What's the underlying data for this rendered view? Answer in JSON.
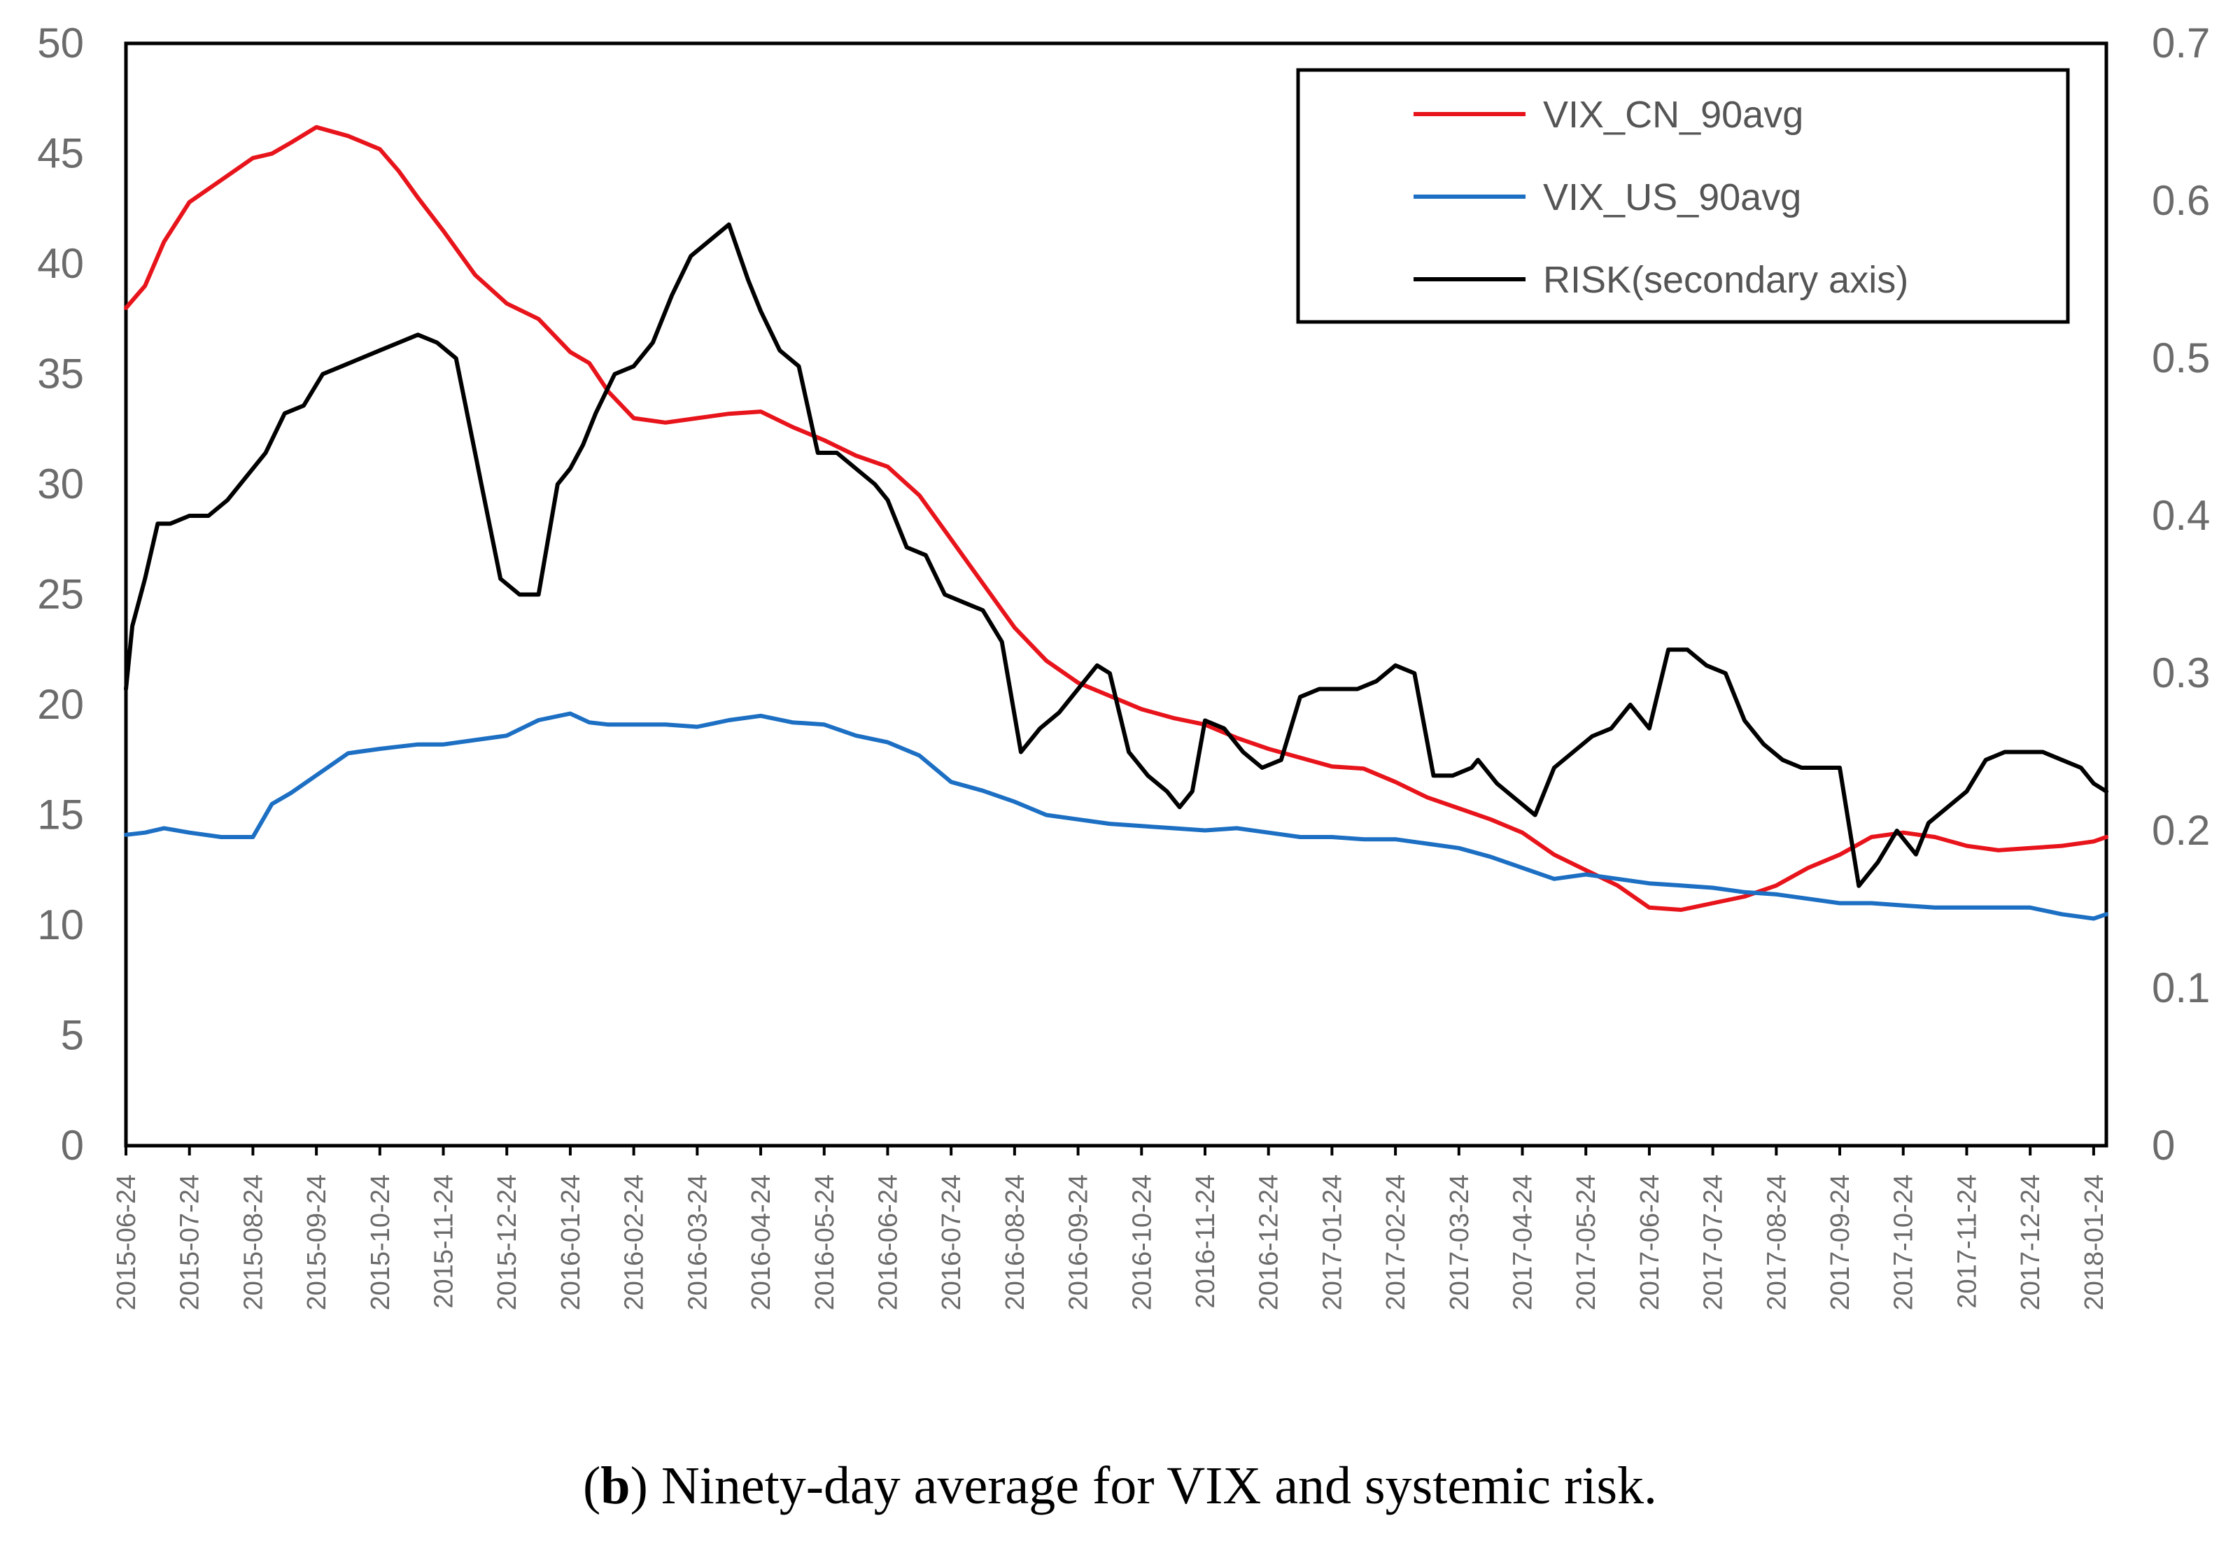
{
  "caption": {
    "open": "(",
    "letter": "b",
    "text": ") Ninety-day average for VIX and systemic risk."
  },
  "chart_data": {
    "type": "line",
    "x_tick_labels": [
      "2015-06-24",
      "2015-07-24",
      "2015-08-24",
      "2015-09-24",
      "2015-10-24",
      "2015-11-24",
      "2015-12-24",
      "2016-01-24",
      "2016-02-24",
      "2016-03-24",
      "2016-04-24",
      "2016-05-24",
      "2016-06-24",
      "2016-07-24",
      "2016-08-24",
      "2016-09-24",
      "2016-10-24",
      "2016-11-24",
      "2016-12-24",
      "2017-01-24",
      "2017-02-24",
      "2017-03-24",
      "2017-04-24",
      "2017-05-24",
      "2017-06-24",
      "2017-07-24",
      "2017-08-24",
      "2017-09-24",
      "2017-10-24",
      "2017-11-24",
      "2017-12-24",
      "2018-01-24"
    ],
    "y_left": {
      "min": 0,
      "max": 50,
      "ticks": [
        "0",
        "5",
        "10",
        "15",
        "20",
        "25",
        "30",
        "35",
        "40",
        "45",
        "50"
      ]
    },
    "y_right": {
      "min": 0,
      "max": 0.7,
      "ticks": [
        "0",
        "0.1",
        "0.2",
        "0.3",
        "0.4",
        "0.5",
        "0.6",
        "0.7"
      ]
    },
    "x_range_months": [
      0,
      31.2
    ],
    "series": [
      {
        "name": "VIX_CN_90avg",
        "axis": "left",
        "color": "#e8141b",
        "x": [
          0,
          0.3,
          0.6,
          1,
          1.5,
          2,
          2.3,
          2.6,
          3,
          3.5,
          4,
          4.3,
          4.6,
          5,
          5.5,
          6,
          6.5,
          7,
          7.3,
          7.6,
          8,
          8.5,
          9,
          9.5,
          10,
          10.5,
          11,
          11.5,
          12,
          12.5,
          13,
          13.5,
          14,
          14.5,
          15,
          15.5,
          16,
          16.5,
          17,
          17.5,
          18,
          18.5,
          19,
          19.5,
          20,
          20.5,
          21,
          21.5,
          22,
          22.5,
          23,
          23.5,
          24,
          24.5,
          25,
          25.5,
          26,
          26.5,
          27,
          27.5,
          28,
          28.5,
          29,
          29.5,
          30,
          30.5,
          31,
          31.2
        ],
        "y": [
          38,
          39,
          41,
          42.8,
          43.8,
          44.8,
          45,
          45.5,
          46.2,
          45.8,
          45.2,
          44.2,
          43,
          41.5,
          39.5,
          38.2,
          37.5,
          36,
          35.5,
          34.2,
          33,
          32.8,
          33,
          33.2,
          33.3,
          32.6,
          32,
          31.3,
          30.8,
          29.5,
          27.5,
          25.5,
          23.5,
          22,
          21,
          20.4,
          19.8,
          19.4,
          19.1,
          18.5,
          18,
          17.6,
          17.2,
          17.1,
          16.5,
          15.8,
          15.3,
          14.8,
          14.2,
          13.2,
          12.5,
          11.8,
          10.8,
          10.7,
          11,
          11.3,
          11.8,
          12.6,
          13.2,
          14,
          14.2,
          14,
          13.6,
          13.4,
          13.5,
          13.6,
          13.8,
          14
        ]
      },
      {
        "name": "VIX_US_90avg",
        "axis": "left",
        "color": "#1c6fc3",
        "x": [
          0,
          0.3,
          0.6,
          1,
          1.5,
          2,
          2.3,
          2.6,
          3,
          3.5,
          4,
          4.3,
          4.6,
          5,
          5.5,
          6,
          6.5,
          7,
          7.3,
          7.6,
          8,
          8.5,
          9,
          9.5,
          10,
          10.5,
          11,
          11.5,
          12,
          12.5,
          13,
          13.5,
          14,
          14.5,
          15,
          15.5,
          16,
          16.5,
          17,
          17.5,
          18,
          18.5,
          19,
          19.5,
          20,
          20.5,
          21,
          21.5,
          22,
          22.5,
          23,
          23.5,
          24,
          24.5,
          25,
          25.5,
          26,
          26.5,
          27,
          27.5,
          28,
          28.5,
          29,
          29.5,
          30,
          30.5,
          31,
          31.2
        ],
        "y": [
          14.1,
          14.2,
          14.4,
          14.2,
          14,
          14,
          15.5,
          16,
          16.8,
          17.8,
          18,
          18.1,
          18.2,
          18.2,
          18.4,
          18.6,
          19.3,
          19.6,
          19.2,
          19.1,
          19.1,
          19.1,
          19,
          19.3,
          19.5,
          19.2,
          19.1,
          18.6,
          18.3,
          17.7,
          16.5,
          16.1,
          15.6,
          15,
          14.8,
          14.6,
          14.5,
          14.4,
          14.3,
          14.4,
          14.2,
          14,
          14,
          13.9,
          13.9,
          13.7,
          13.5,
          13.1,
          12.6,
          12.1,
          12.3,
          12.1,
          11.9,
          11.8,
          11.7,
          11.5,
          11.4,
          11.2,
          11,
          11,
          10.9,
          10.8,
          10.8,
          10.8,
          10.8,
          10.5,
          10.3,
          10.5
        ]
      },
      {
        "name": "RISK(secondary axis)",
        "axis": "right",
        "color": "#000000",
        "x": [
          0,
          0.1,
          0.3,
          0.5,
          0.7,
          1,
          1.3,
          1.6,
          1.9,
          2.2,
          2.5,
          2.8,
          3.1,
          3.4,
          3.7,
          4,
          4.3,
          4.6,
          4.9,
          5.2,
          5.5,
          5.6,
          5.9,
          6.2,
          6.5,
          6.8,
          7,
          7.2,
          7.4,
          7.7,
          8,
          8.3,
          8.6,
          8.9,
          9.2,
          9.5,
          9.8,
          10,
          10.3,
          10.6,
          10.9,
          11.2,
          11.5,
          11.8,
          12,
          12.3,
          12.6,
          12.9,
          13.2,
          13.5,
          13.8,
          14.1,
          14.4,
          14.7,
          15,
          15.3,
          15.5,
          15.8,
          16.1,
          16.4,
          16.6,
          16.8,
          17,
          17.3,
          17.6,
          17.9,
          18.2,
          18.5,
          18.8,
          19.1,
          19.4,
          19.7,
          20,
          20.3,
          20.6,
          20.9,
          21.2,
          21.3,
          21.6,
          21.9,
          22.2,
          22.5,
          22.8,
          23.1,
          23.4,
          23.7,
          24,
          24.3,
          24.6,
          24.9,
          25.2,
          25.5,
          25.8,
          26.1,
          26.4,
          26.7,
          27,
          27.3,
          27.6,
          27.9,
          28.2,
          28.4,
          28.7,
          29,
          29.3,
          29.6,
          29.9,
          30.2,
          30.5,
          30.8,
          31,
          31.2
        ],
        "y": [
          0.29,
          0.33,
          0.36,
          0.395,
          0.395,
          0.4,
          0.4,
          0.41,
          0.425,
          0.44,
          0.465,
          0.47,
          0.49,
          0.495,
          0.5,
          0.505,
          0.51,
          0.515,
          0.51,
          0.5,
          0.44,
          0.42,
          0.36,
          0.35,
          0.35,
          0.42,
          0.43,
          0.445,
          0.465,
          0.49,
          0.495,
          0.51,
          0.54,
          0.565,
          0.575,
          0.585,
          0.55,
          0.53,
          0.505,
          0.495,
          0.44,
          0.44,
          0.43,
          0.42,
          0.41,
          0.38,
          0.375,
          0.35,
          0.345,
          0.34,
          0.32,
          0.25,
          0.265,
          0.275,
          0.29,
          0.305,
          0.3,
          0.25,
          0.235,
          0.225,
          0.215,
          0.225,
          0.27,
          0.265,
          0.25,
          0.24,
          0.245,
          0.285,
          0.29,
          0.29,
          0.29,
          0.295,
          0.305,
          0.3,
          0.235,
          0.235,
          0.24,
          0.245,
          0.23,
          0.22,
          0.21,
          0.24,
          0.25,
          0.26,
          0.265,
          0.28,
          0.265,
          0.315,
          0.315,
          0.305,
          0.3,
          0.27,
          0.255,
          0.245,
          0.24,
          0.24,
          0.24,
          0.165,
          0.18,
          0.2,
          0.185,
          0.205,
          0.215,
          0.225,
          0.245,
          0.25,
          0.25,
          0.25,
          0.245,
          0.24,
          0.23,
          0.225
        ]
      }
    ],
    "legend": [
      {
        "label": "VIX_CN_90avg",
        "color": "#e8141b"
      },
      {
        "label": "VIX_US_90avg",
        "color": "#1c6fc3"
      },
      {
        "label": "RISK(secondary axis)",
        "color": "#000000"
      }
    ],
    "legend_position": "top-right",
    "grid": false
  }
}
